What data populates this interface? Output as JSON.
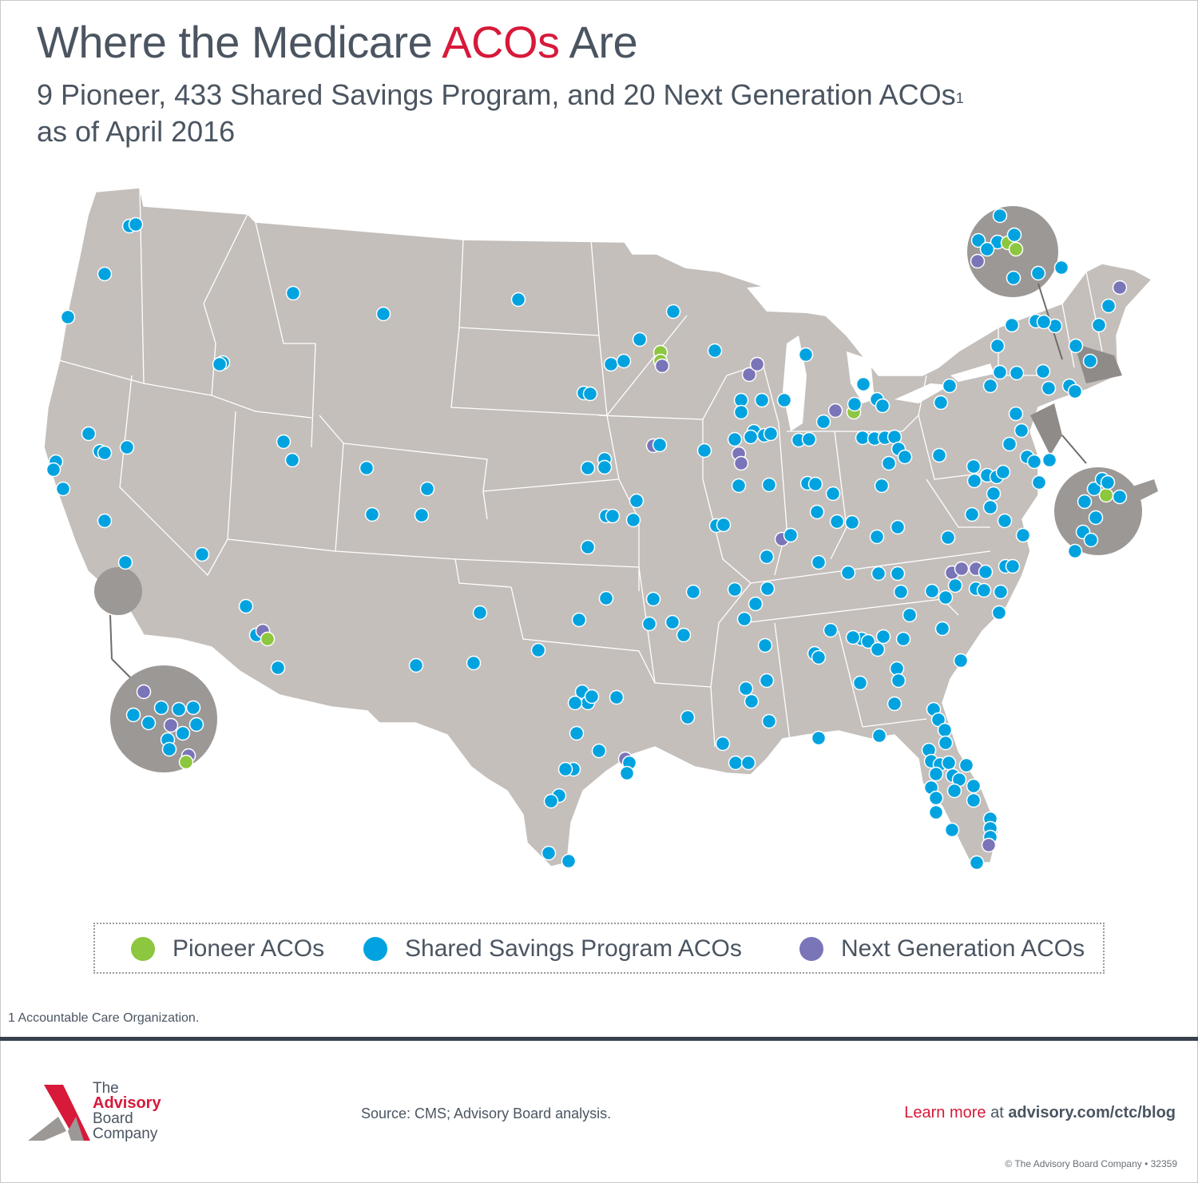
{
  "title": {
    "part1": "Where the Medicare ",
    "accent": "ACOs",
    "part2": " Are",
    "accent_color": "#d7193a"
  },
  "subtitle": {
    "line1": "9 Pioneer, 433 Shared Savings Program, and 20 Next Generation ACOs",
    "sup": "1",
    "line2": "as of April 2016"
  },
  "legend": {
    "pioneer": {
      "label": "Pioneer ACOs",
      "color": "#8dc63f"
    },
    "ssp": {
      "label": "Shared Savings Program ACOs",
      "color": "#00a3e0"
    },
    "nextgen": {
      "label": "Next Generation ACOs",
      "color": "#7a74b8"
    }
  },
  "counts": {
    "pioneer": 9,
    "ssp": 433,
    "nextgen": 20
  },
  "footnote": "1 Accountable Care Organization.",
  "logo": {
    "line1": "The",
    "line2": "Advisory",
    "line3": "Board",
    "line4": "Company"
  },
  "source": "Source: CMS; Advisory Board analysis.",
  "learn_more": {
    "label": "Learn more",
    "at": " at ",
    "url": "advisory.com/ctc/blog"
  },
  "copyright": "© The Advisory Board Company • 32359",
  "map_colors": {
    "land": "#c4bfbb",
    "inset": "#9c9896",
    "border": "#ffffff"
  }
}
